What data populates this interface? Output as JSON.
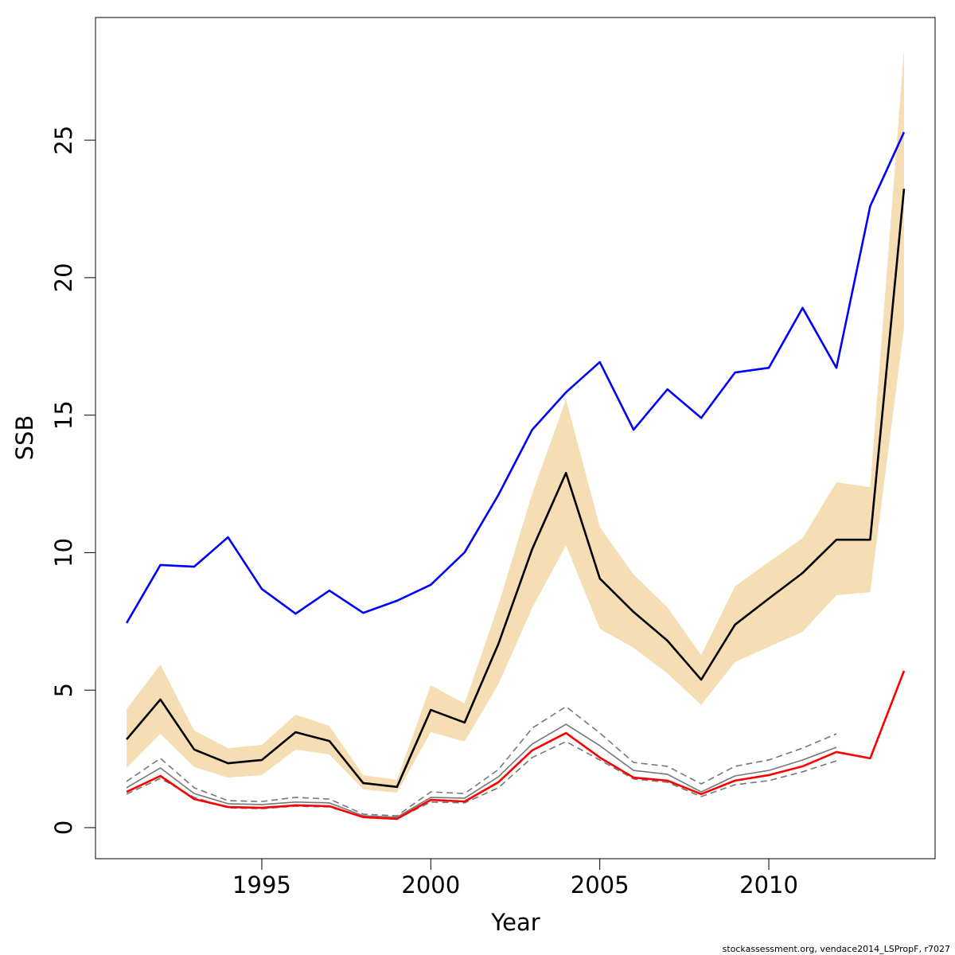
{
  "chart_data": {
    "type": "line",
    "x_label": "Year",
    "y_label": "SSB",
    "footer": "stockassessment.org, vendace2014_LSPropF, r7027",
    "x": [
      1991,
      1992,
      1993,
      1994,
      1995,
      1996,
      1997,
      1998,
      1999,
      2000,
      2001,
      2002,
      2003,
      2004,
      2005,
      2006,
      2007,
      2008,
      2009,
      2010,
      2011,
      2012,
      2013,
      2014
    ],
    "xlim": [
      1990.08,
      2014.92
    ],
    "xticks": [
      1995,
      2000,
      2005,
      2010
    ],
    "ylim": [
      -1.13,
      29.46
    ],
    "yticks": [
      0,
      5,
      10,
      15,
      20,
      25
    ],
    "band": {
      "color": "#f5deb3",
      "upper": [
        4.31,
        5.93,
        3.53,
        2.89,
        3.01,
        4.11,
        3.7,
        1.91,
        1.74,
        5.18,
        4.51,
        8.1,
        12.15,
        15.57,
        10.94,
        9.2,
        8.01,
        6.28,
        8.77,
        9.66,
        10.53,
        12.56,
        12.38,
        28.3
      ],
      "lower": [
        2.17,
        3.41,
        2.2,
        1.82,
        1.91,
        2.84,
        2.66,
        1.39,
        1.27,
        3.47,
        3.13,
        5.21,
        7.99,
        10.27,
        7.23,
        6.54,
        5.61,
        4.46,
        6.02,
        6.57,
        7.12,
        8.45,
        8.56,
        18.17
      ]
    },
    "series": [
      {
        "color": "#0000ff",
        "dash": false,
        "values": [
          7.44,
          9.55,
          9.49,
          10.56,
          8.68,
          7.78,
          8.62,
          7.81,
          8.25,
          8.83,
          10.01,
          12.1,
          14.47,
          15.83,
          16.93,
          14.47,
          15.94,
          14.9,
          16.55,
          16.72,
          18.9,
          16.72,
          22.6,
          25.29
        ]
      },
      {
        "color": "#000000",
        "dash": false,
        "values": [
          3.21,
          4.66,
          2.84,
          2.34,
          2.46,
          3.47,
          3.15,
          1.62,
          1.48,
          4.28,
          3.82,
          6.68,
          10.13,
          12.9,
          9.06,
          7.84,
          6.8,
          5.38,
          7.38,
          8.33,
          9.26,
          10.47,
          10.47,
          23.23
        ]
      },
      {
        "color": "#777777",
        "dash": true,
        "values": [
          1.68,
          2.52,
          1.45,
          0.98,
          0.95,
          1.1,
          1.04,
          0.49,
          0.43,
          1.3,
          1.24,
          2.11,
          3.62,
          4.4,
          3.44,
          2.37,
          2.23,
          1.59,
          2.23,
          2.46,
          2.89,
          3.41,
          null,
          null
        ]
      },
      {
        "color": "#777777",
        "dash": true,
        "values": [
          1.22,
          1.79,
          1.1,
          0.72,
          0.69,
          0.78,
          0.75,
          0.38,
          0.32,
          0.93,
          0.9,
          1.45,
          2.55,
          3.13,
          2.46,
          1.77,
          1.65,
          1.13,
          1.56,
          1.71,
          2.03,
          2.43,
          null,
          null
        ]
      },
      {
        "color": "#777777",
        "dash": false,
        "values": [
          1.45,
          2.17,
          1.24,
          0.87,
          0.84,
          0.93,
          0.9,
          0.43,
          0.38,
          1.1,
          1.07,
          1.85,
          3.04,
          3.76,
          2.98,
          2.08,
          1.94,
          1.3,
          1.88,
          2.08,
          2.46,
          2.92,
          null,
          null
        ]
      },
      {
        "color": "#ff0000",
        "dash": false,
        "values": [
          1.3,
          1.88,
          1.04,
          0.75,
          0.72,
          0.81,
          0.78,
          0.38,
          0.32,
          1.01,
          0.95,
          1.65,
          2.81,
          3.44,
          2.55,
          1.82,
          1.71,
          1.22,
          1.71,
          1.91,
          2.23,
          2.75,
          2.52,
          5.7
        ]
      }
    ]
  }
}
